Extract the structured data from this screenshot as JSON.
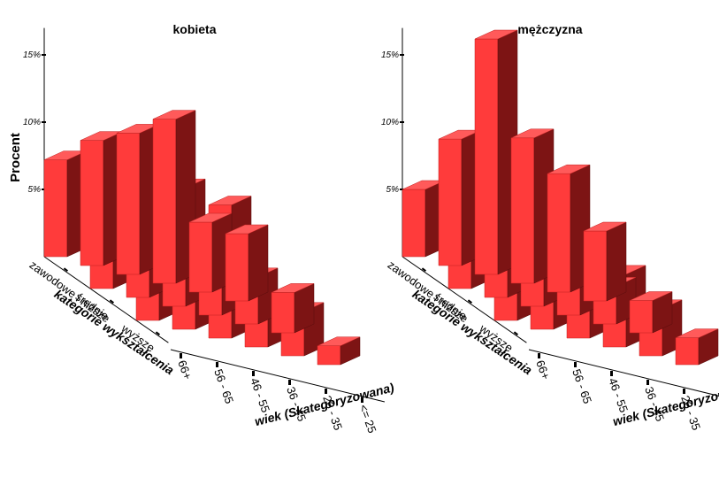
{
  "y_axis_label": "Procent",
  "x_axis_label": "wiek (Skategoryzowana)",
  "depth_axis_label": "kategorie wykształcenia",
  "colors": {
    "front": "#ff3b3b",
    "top": "#ff5a5a",
    "side": "#7d1414",
    "axis": "#000000"
  },
  "chart_data": [
    {
      "type": "bar",
      "title": "kobieta",
      "ylabel": "Procent",
      "xlabel": "wiek (Skategoryzowana)",
      "zlabel": "kategorie wykształcenia",
      "ylim": [
        0,
        17
      ],
      "yticks": [
        "5%",
        "10%",
        "15%"
      ],
      "categories": [
        "<= 25",
        "26 - 35",
        "36 - 45",
        "46 - 55",
        "56 - 65",
        "66+"
      ],
      "series": [
        {
          "name": "zawodowe i niższe",
          "values": [
            7.2,
            9.3,
            10.5,
            12.2,
            5.2,
            5.0
          ]
        },
        {
          "name": "średnie",
          "values": [
            5.0,
            6.2,
            8.8,
            3.8,
            3.5,
            3.0
          ]
        },
        {
          "name": "wyższe",
          "values": [
            5.6,
            4.9,
            9.9,
            3.6,
            3.3,
            1.4
          ]
        }
      ]
    },
    {
      "type": "bar",
      "title": "mężczyzna",
      "ylabel": "Procent",
      "xlabel": "wiek (Skategoryzowana)",
      "zlabel": "kategorie wykształcenia",
      "ylim": [
        0,
        17
      ],
      "yticks": [
        "5%",
        "10%",
        "15%"
      ],
      "categories": [
        "<= 25",
        "26 - 35",
        "36 - 45",
        "46 - 55",
        "56 - 65",
        "66+"
      ],
      "series": [
        {
          "name": "zawodowe i niższe",
          "values": [
            5.0,
            9.4,
            17.5,
            10.8,
            8.8,
            5.2
          ]
        },
        {
          "name": "średnie",
          "values": [
            3.3,
            8.0,
            7.5,
            3.3,
            2.8,
            2.4
          ]
        },
        {
          "name": "wyższe",
          "values": [
            3.1,
            8.5,
            4.0,
            5.4,
            3.5,
            2.0
          ]
        }
      ]
    }
  ]
}
